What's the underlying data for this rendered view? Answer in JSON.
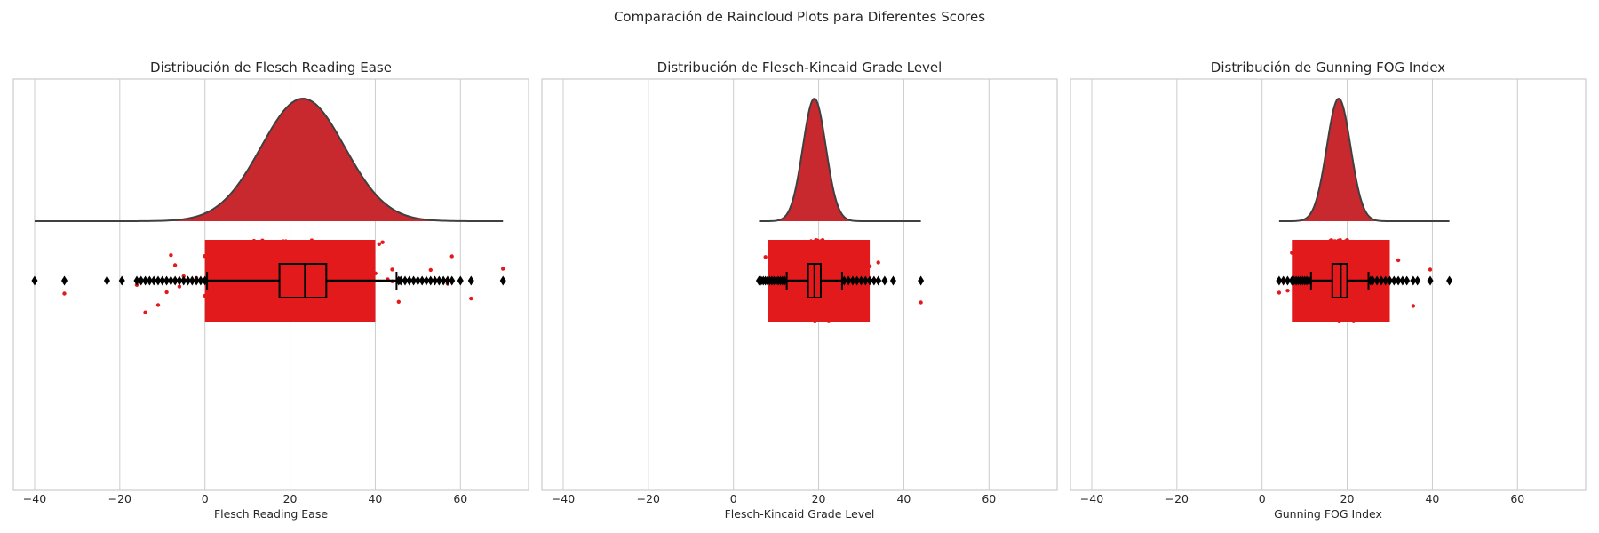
{
  "figure": {
    "suptitle": "Comparación de Raincloud Plots para Diferentes Scores"
  },
  "chart_data": [
    {
      "type": "raincloud",
      "title": "Distribución de Flesch Reading Ease",
      "xlabel": "Flesch Reading Ease",
      "xlim": [
        -45,
        76
      ],
      "xticks": [
        -40,
        -20,
        0,
        20,
        40,
        60
      ],
      "xtick_labels": [
        "−40",
        "−20",
        "0",
        "20",
        "40",
        "60"
      ],
      "grid": true,
      "color": "#e31a1c",
      "density": {
        "mean": 23,
        "sd": 9.8,
        "range": [
          -40,
          70
        ]
      },
      "box": {
        "q1": 17.5,
        "median": 23.5,
        "q3": 28.5,
        "whisker_low": 0.5,
        "whisker_high": 45
      },
      "dense_range": [
        0,
        40
      ],
      "outliers": [
        -40,
        -33,
        -23,
        -19.5,
        -16,
        -15,
        -14,
        -13,
        -12,
        -11,
        -10,
        -9,
        -8,
        -7,
        -6,
        -5,
        -4,
        -3,
        -2,
        -1,
        0,
        45.5,
        46,
        47,
        48,
        49,
        50,
        51,
        52,
        53,
        54,
        55,
        56,
        57,
        58,
        60,
        62.5,
        70
      ]
    },
    {
      "type": "raincloud",
      "title": "Distribución de Flesch-Kincaid Grade Level",
      "xlabel": "Flesch-Kincaid Grade Level",
      "xlim": [
        -45,
        76
      ],
      "xticks": [
        -40,
        -20,
        0,
        20,
        40,
        60
      ],
      "xtick_labels": [
        "−40",
        "−20",
        "0",
        "20",
        "40",
        "60"
      ],
      "grid": true,
      "color": "#e31a1c",
      "density": {
        "mean": 19,
        "sd": 2.7,
        "range": [
          6,
          44
        ]
      },
      "box": {
        "q1": 17.5,
        "median": 19,
        "q3": 20.5,
        "whisker_low": 12.5,
        "whisker_high": 25.5
      },
      "dense_range": [
        8,
        32
      ],
      "outliers": [
        6,
        6.5,
        7,
        7.5,
        8,
        8.5,
        9,
        9.5,
        10,
        10.5,
        11,
        11.5,
        12,
        26,
        27,
        28,
        29,
        30,
        31,
        32,
        33,
        34,
        35.5,
        37.5,
        44
      ]
    },
    {
      "type": "raincloud",
      "title": "Distribución de Gunning FOG Index",
      "xlabel": "Gunning FOG Index",
      "xlim": [
        -45,
        76
      ],
      "xticks": [
        -40,
        -20,
        0,
        20,
        40,
        60
      ],
      "xtick_labels": [
        "−40",
        "−20",
        "0",
        "20",
        "40",
        "60"
      ],
      "grid": true,
      "color": "#e31a1c",
      "density": {
        "mean": 18,
        "sd": 2.8,
        "range": [
          4,
          44
        ]
      },
      "box": {
        "q1": 16.5,
        "median": 18.5,
        "q3": 20,
        "whisker_low": 11.5,
        "whisker_high": 25
      },
      "dense_range": [
        7,
        30
      ],
      "outliers": [
        4,
        5,
        6,
        7,
        7.5,
        8,
        8.5,
        9,
        9.5,
        10,
        10.5,
        11,
        25.5,
        26,
        27,
        28,
        29,
        30,
        31,
        32,
        33,
        34,
        35.5,
        36.5,
        39.5,
        44
      ]
    }
  ]
}
